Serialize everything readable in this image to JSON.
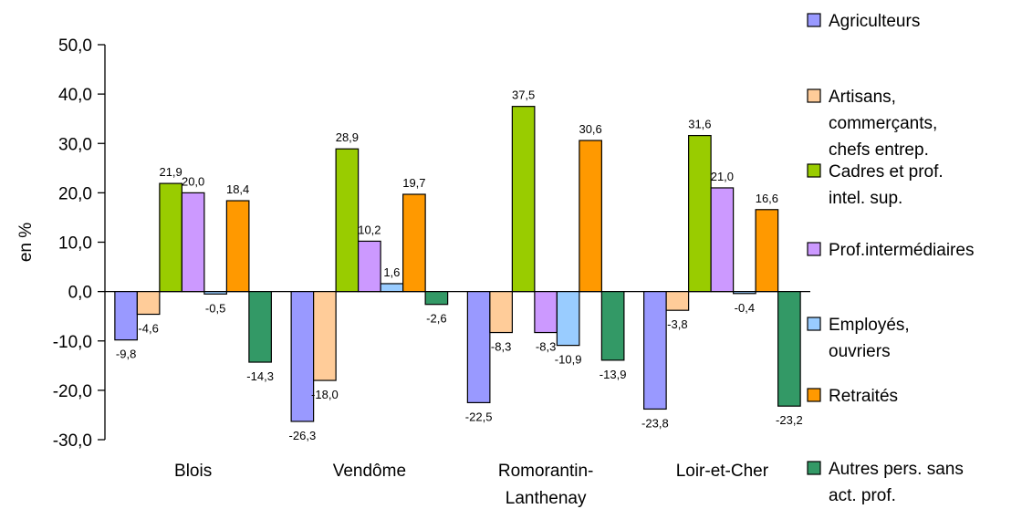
{
  "chart_data": {
    "type": "bar",
    "title": "",
    "xlabel": "",
    "ylabel": "en %",
    "ylim": [
      -30,
      50
    ],
    "yticks": [
      "-30,0",
      "-20,0",
      "-10,0",
      "0,0",
      "10,0",
      "20,0",
      "30,0",
      "40,0",
      "50,0"
    ],
    "grid": false,
    "legend_position": "right",
    "categories": [
      [
        "Blois"
      ],
      [
        "Vendôme"
      ],
      [
        "Romorantin-",
        "Lanthenay"
      ],
      [
        "Loir-et-Cher"
      ]
    ],
    "series": [
      {
        "name": [
          "Agriculteurs"
        ],
        "color": "#9999ff",
        "values": [
          -9.8,
          -26.3,
          -22.5,
          -23.8
        ],
        "labels": [
          "-9,8",
          "-26,3",
          "-22,5",
          "-23,8"
        ]
      },
      {
        "name": [
          "Artisans,",
          "commerçants,",
          "chefs entrep."
        ],
        "color": "#ffcc99",
        "values": [
          -4.6,
          -18.0,
          -8.3,
          -3.8
        ],
        "labels": [
          "-4,6",
          "-18,0",
          "-8,3",
          "-3,8"
        ]
      },
      {
        "name": [
          "Cadres et prof.",
          "intel. sup."
        ],
        "color": "#99cc00",
        "values": [
          21.9,
          28.9,
          37.5,
          31.6
        ],
        "labels": [
          "21,9",
          "28,9",
          "37,5",
          "31,6"
        ]
      },
      {
        "name": [
          "Prof.intermédiaires"
        ],
        "color": "#cc99ff",
        "values": [
          20.0,
          10.2,
          -8.3,
          21.0
        ],
        "labels": [
          "20,0",
          "10,2",
          "-8,3",
          "21,0"
        ]
      },
      {
        "name": [
          "Employés,",
          "ouvriers"
        ],
        "color": "#99ccff",
        "values": [
          -0.5,
          1.6,
          -10.9,
          -0.4
        ],
        "labels": [
          "-0,5",
          "1,6",
          "-10,9",
          "-0,4"
        ]
      },
      {
        "name": [
          "Retraités"
        ],
        "color": "#ff9900",
        "values": [
          18.4,
          19.7,
          30.6,
          16.6
        ],
        "labels": [
          "18,4",
          "19,7",
          "30,6",
          "16,6"
        ]
      },
      {
        "name": [
          "Autres pers. sans",
          "act. prof."
        ],
        "color": "#339966",
        "values": [
          -14.3,
          -2.6,
          -13.9,
          -23.2
        ],
        "labels": [
          "-14,3",
          "-2,6",
          "-13,9",
          "-23,2"
        ]
      }
    ]
  }
}
